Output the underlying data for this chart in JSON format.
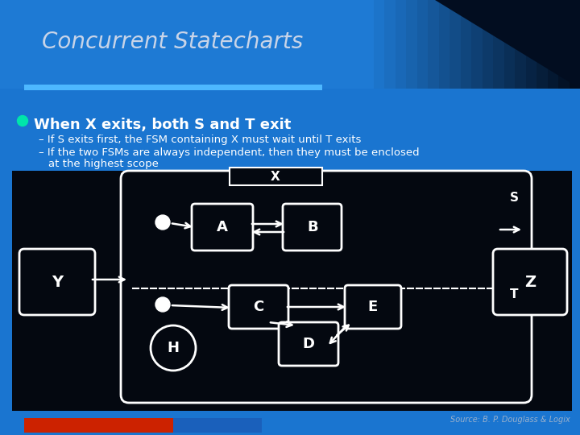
{
  "title": "Concurrent Statecharts",
  "bullet_main": "When X exits, both S and T exit",
  "bullet_sub1": "– If S exits first, the FSM containing X must wait until T exits",
  "bullet_sub2a": "– If the two FSMs are always independent, then they must be enclosed",
  "bullet_sub2b": "  at the highest scope",
  "source": "Source: B. P. Douglass & Logix",
  "bg_main": "#1565c0",
  "bg_header_left": "#1a6fbd",
  "bg_header_right": "#020d1e",
  "diagram_bg": "#040810",
  "white": "#ffffff",
  "bullet_color": "#00e5aa",
  "sep_bar_color": "#3399ff",
  "title_color": "#c8d4e8"
}
